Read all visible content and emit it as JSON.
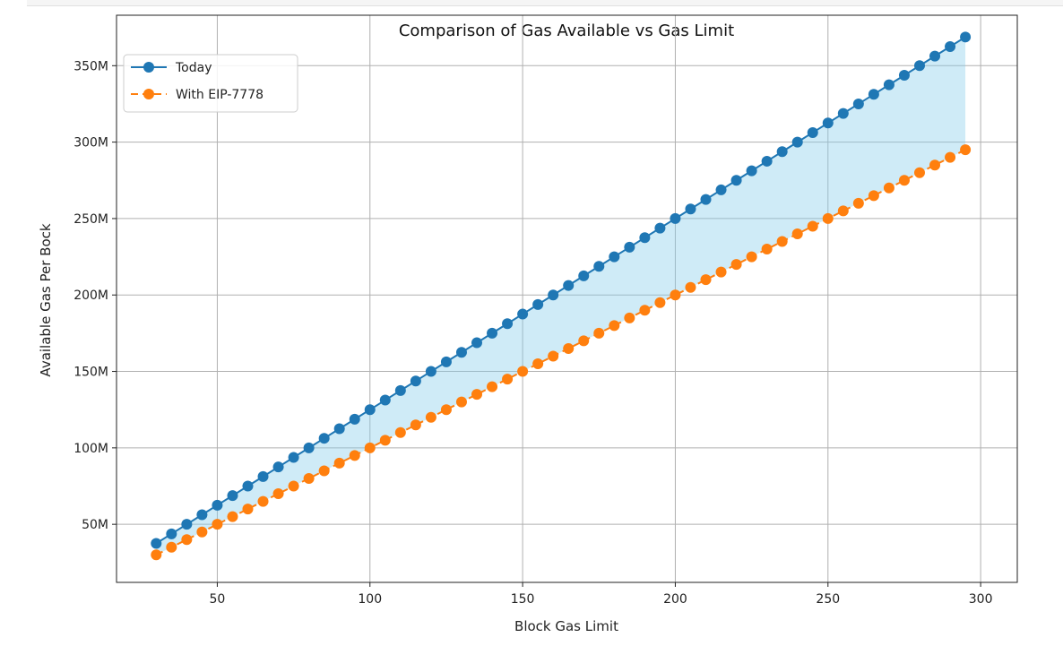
{
  "chart_data": {
    "type": "line",
    "title": "Comparison of Gas Available vs Gas Limit",
    "xlabel": "Block Gas Limit",
    "ylabel": "Available Gas Per Bock",
    "xlim": [
      17,
      312
    ],
    "ylim": [
      12000000,
      383000000
    ],
    "x_ticks": [
      50,
      100,
      150,
      200,
      250,
      300
    ],
    "x_tick_labels": [
      "50",
      "100",
      "150",
      "200",
      "250",
      "300"
    ],
    "y_ticks": [
      50000000,
      100000000,
      150000000,
      200000000,
      250000000,
      300000000,
      350000000
    ],
    "y_tick_labels": [
      "50M",
      "100M",
      "150M",
      "200M",
      "250M",
      "300M",
      "350M"
    ],
    "grid": true,
    "legend_position": "top-left",
    "fill_between": {
      "series": [
        "Today",
        "With EIP-7778"
      ],
      "color": "#87ceeb"
    },
    "x": [
      30,
      35,
      40,
      45,
      50,
      55,
      60,
      65,
      70,
      75,
      80,
      85,
      90,
      95,
      100,
      105,
      110,
      115,
      120,
      125,
      130,
      135,
      140,
      145,
      150,
      155,
      160,
      165,
      170,
      175,
      180,
      185,
      190,
      195,
      200,
      205,
      210,
      215,
      220,
      225,
      230,
      235,
      240,
      245,
      250,
      255,
      260,
      265,
      270,
      275,
      280,
      285,
      290,
      295
    ],
    "series": [
      {
        "name": "Today",
        "color": "#1f77b4",
        "line_style": "solid",
        "marker": "circle",
        "values": [
          37500000,
          43750000,
          50000000,
          56250000,
          62500000,
          68750000,
          75000000,
          81250000,
          87500000,
          93750000,
          100000000,
          106250000,
          112500000,
          118750000,
          125000000,
          131250000,
          137500000,
          143750000,
          150000000,
          156250000,
          162500000,
          168750000,
          175000000,
          181250000,
          187500000,
          193750000,
          200000000,
          206250000,
          212500000,
          218750000,
          225000000,
          231250000,
          237500000,
          243750000,
          250000000,
          256250000,
          262500000,
          268750000,
          275000000,
          281250000,
          287500000,
          293750000,
          300000000,
          306250000,
          312500000,
          318750000,
          325000000,
          331250000,
          337500000,
          343750000,
          350000000,
          356250000,
          362500000,
          368750000
        ]
      },
      {
        "name": "With EIP-7778",
        "color": "#ff7f0e",
        "line_style": "dashed",
        "marker": "circle",
        "values": [
          30000000,
          35000000,
          40000000,
          45000000,
          50000000,
          55000000,
          60000000,
          65000000,
          70000000,
          75000000,
          80000000,
          85000000,
          90000000,
          95000000,
          100000000,
          105000000,
          110000000,
          115000000,
          120000000,
          125000000,
          130000000,
          135000000,
          140000000,
          145000000,
          150000000,
          155000000,
          160000000,
          165000000,
          170000000,
          175000000,
          180000000,
          185000000,
          190000000,
          195000000,
          200000000,
          205000000,
          210000000,
          215000000,
          220000000,
          225000000,
          230000000,
          235000000,
          240000000,
          245000000,
          250000000,
          255000000,
          260000000,
          265000000,
          270000000,
          275000000,
          280000000,
          285000000,
          290000000,
          295000000
        ]
      }
    ]
  }
}
